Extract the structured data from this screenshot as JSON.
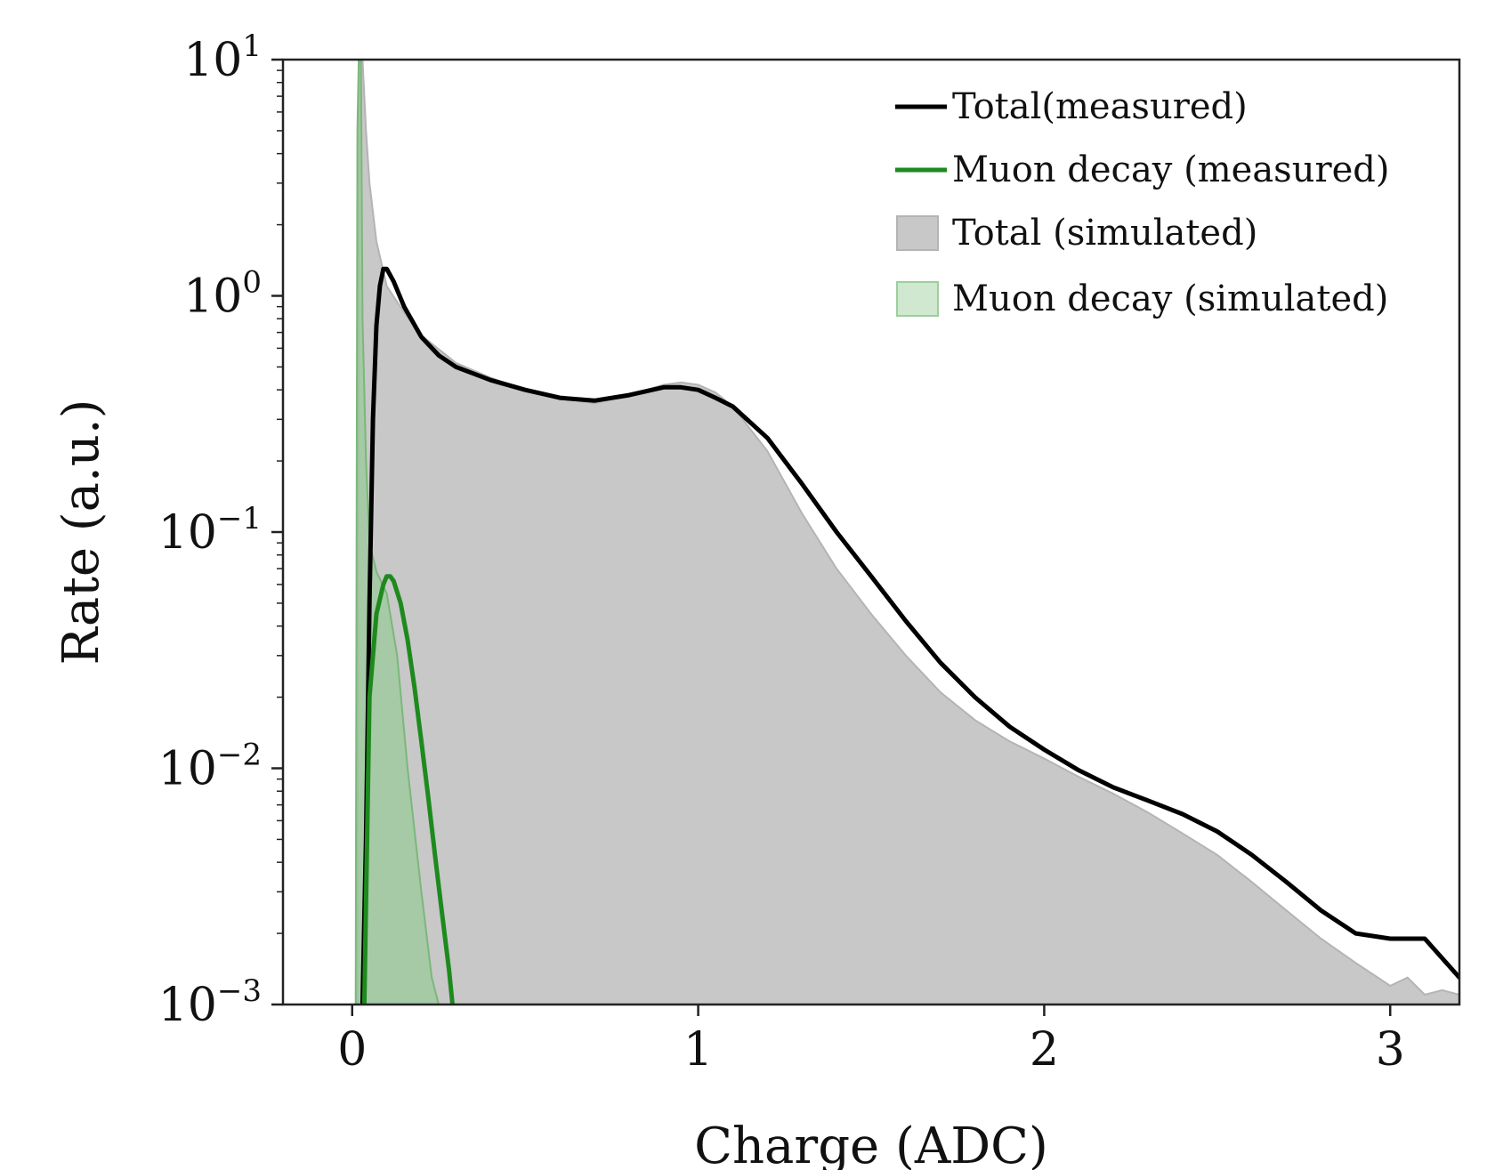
{
  "chart_data": {
    "type": "area",
    "title": "",
    "xlabel": "Charge (ADC)",
    "ylabel": "Rate (a.u.)",
    "xlim": [
      -0.2,
      3.2
    ],
    "ylim": [
      0.001,
      10
    ],
    "yscale": "log",
    "grid": false,
    "legend_position": "top-right",
    "x_ticks": [
      {
        "value": 0,
        "label": "0"
      },
      {
        "value": 1,
        "label": "1"
      },
      {
        "value": 2,
        "label": "2"
      },
      {
        "value": 3,
        "label": "3"
      }
    ],
    "y_ticks": [
      {
        "value": 0.001,
        "base": "10",
        "exp": "−3"
      },
      {
        "value": 0.01,
        "base": "10",
        "exp": "−2"
      },
      {
        "value": 0.1,
        "base": "10",
        "exp": "−1"
      },
      {
        "value": 1,
        "base": "10",
        "exp": "0"
      },
      {
        "value": 10,
        "base": "10",
        "exp": "1"
      }
    ],
    "series": [
      {
        "name": "Total (simulated)",
        "kind": "area",
        "color": "#c8c8c8",
        "edge_color": "#b4b4b4",
        "x": [
          0.015,
          0.02,
          0.025,
          0.03,
          0.04,
          0.05,
          0.07,
          0.1,
          0.15,
          0.2,
          0.3,
          0.4,
          0.5,
          0.6,
          0.7,
          0.8,
          0.9,
          0.95,
          1.0,
          1.05,
          1.1,
          1.2,
          1.3,
          1.4,
          1.5,
          1.6,
          1.7,
          1.8,
          1.9,
          2.0,
          2.1,
          2.2,
          2.3,
          2.4,
          2.5,
          2.6,
          2.7,
          2.8,
          2.9,
          3.0,
          3.05,
          3.1,
          3.15,
          3.2
        ],
        "values": [
          0.001,
          12,
          12,
          10,
          5.0,
          3.0,
          1.7,
          1.1,
          0.85,
          0.68,
          0.52,
          0.45,
          0.4,
          0.37,
          0.35,
          0.38,
          0.42,
          0.43,
          0.42,
          0.39,
          0.34,
          0.22,
          0.12,
          0.07,
          0.045,
          0.03,
          0.021,
          0.016,
          0.013,
          0.011,
          0.0092,
          0.0078,
          0.0065,
          0.0053,
          0.0043,
          0.0033,
          0.0025,
          0.0019,
          0.0015,
          0.0012,
          0.0013,
          0.0011,
          0.00115,
          0.0011
        ]
      },
      {
        "name": "Muon decay (simulated)",
        "kind": "area",
        "color": "#8fc98f",
        "edge_color": "#7ab87a",
        "x": [
          0.01,
          0.015,
          0.02,
          0.025,
          0.03,
          0.04,
          0.05,
          0.07,
          0.1,
          0.13,
          0.16,
          0.2,
          0.23,
          0.25
        ],
        "values": [
          0.001,
          5,
          12,
          12,
          0.8,
          0.2,
          0.09,
          0.068,
          0.055,
          0.03,
          0.01,
          0.003,
          0.0013,
          0.001
        ]
      },
      {
        "name": "Total(measured)",
        "kind": "line",
        "color": "#000000",
        "x": [
          0.03,
          0.04,
          0.05,
          0.06,
          0.07,
          0.08,
          0.09,
          0.1,
          0.12,
          0.15,
          0.2,
          0.25,
          0.3,
          0.4,
          0.5,
          0.6,
          0.7,
          0.8,
          0.9,
          0.95,
          1.0,
          1.05,
          1.1,
          1.2,
          1.3,
          1.4,
          1.5,
          1.6,
          1.7,
          1.8,
          1.9,
          2.0,
          2.1,
          2.2,
          2.3,
          2.4,
          2.5,
          2.6,
          2.7,
          2.8,
          2.9,
          3.0,
          3.1,
          3.2
        ],
        "values": [
          0.001,
          0.005,
          0.05,
          0.3,
          0.75,
          1.1,
          1.3,
          1.3,
          1.15,
          0.9,
          0.67,
          0.56,
          0.5,
          0.44,
          0.4,
          0.37,
          0.36,
          0.38,
          0.41,
          0.41,
          0.4,
          0.37,
          0.34,
          0.25,
          0.16,
          0.1,
          0.065,
          0.042,
          0.028,
          0.02,
          0.015,
          0.012,
          0.0098,
          0.0083,
          0.0073,
          0.0064,
          0.0054,
          0.0043,
          0.0033,
          0.0025,
          0.002,
          0.0019,
          0.0019,
          0.0013
        ]
      },
      {
        "name": "Muon decay (measured)",
        "kind": "line",
        "color": "#1e8a1e",
        "x": [
          0.035,
          0.05,
          0.07,
          0.09,
          0.1,
          0.11,
          0.12,
          0.14,
          0.16,
          0.18,
          0.2,
          0.22,
          0.24,
          0.26,
          0.28,
          0.29
        ],
        "values": [
          0.001,
          0.02,
          0.045,
          0.06,
          0.065,
          0.065,
          0.062,
          0.05,
          0.035,
          0.022,
          0.013,
          0.0075,
          0.0042,
          0.0024,
          0.0014,
          0.001
        ]
      }
    ]
  }
}
